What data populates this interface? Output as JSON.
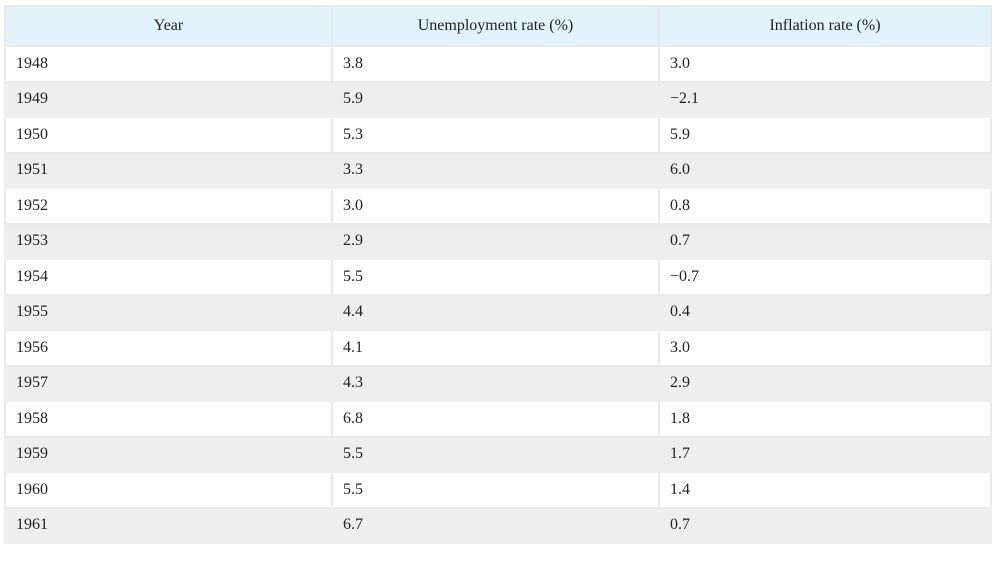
{
  "chart_data": {
    "type": "table",
    "columns": [
      "Year",
      "Unemployment rate (%)",
      "Inflation rate (%)"
    ],
    "rows": [
      [
        "1948",
        "3.8",
        "3.0"
      ],
      [
        "1949",
        "5.9",
        "−2.1"
      ],
      [
        "1950",
        "5.3",
        "5.9"
      ],
      [
        "1951",
        "3.3",
        "6.0"
      ],
      [
        "1952",
        "3.0",
        "0.8"
      ],
      [
        "1953",
        "2.9",
        "0.7"
      ],
      [
        "1954",
        "5.5",
        "−0.7"
      ],
      [
        "1955",
        "4.4",
        "0.4"
      ],
      [
        "1956",
        "4.1",
        "3.0"
      ],
      [
        "1957",
        "4.3",
        "2.9"
      ],
      [
        "1958",
        "6.8",
        "1.8"
      ],
      [
        "1959",
        "5.5",
        "1.7"
      ],
      [
        "1960",
        "5.5",
        "1.4"
      ],
      [
        "1961",
        "6.7",
        "0.7"
      ]
    ]
  },
  "colors": {
    "header_background": "#e2f3fb",
    "row_alt_background": "#eeeeee",
    "header_accent": "#7fcbe0"
  }
}
